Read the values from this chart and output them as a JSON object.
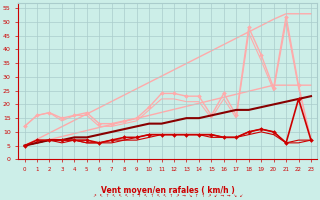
{
  "x": [
    0,
    1,
    2,
    3,
    4,
    5,
    6,
    7,
    8,
    9,
    10,
    11,
    12,
    13,
    14,
    15,
    16,
    17,
    18,
    19,
    20,
    21,
    22,
    23
  ],
  "background_color": "#cceee8",
  "grid_color": "#aacccc",
  "xlabel": "Vent moyen/en rafales ( km/h )",
  "ylabel_ticks": [
    0,
    5,
    10,
    15,
    20,
    25,
    30,
    35,
    40,
    45,
    50,
    55
  ],
  "lines": [
    {
      "y": [
        5.0,
        7.3,
        9.6,
        11.9,
        14.2,
        16.5,
        18.8,
        21.1,
        23.4,
        25.7,
        28.0,
        30.3,
        32.6,
        34.9,
        37.2,
        39.5,
        41.8,
        44.1,
        46.4,
        48.7,
        51.0,
        53.0,
        53.0,
        53.0
      ],
      "color": "#ffaaaa",
      "lw": 1.0,
      "marker": null,
      "ms": 0,
      "zorder": 1
    },
    {
      "y": [
        5.0,
        6.1,
        7.2,
        8.3,
        9.4,
        10.5,
        11.6,
        12.7,
        13.8,
        14.9,
        16.0,
        17.1,
        18.2,
        19.3,
        20.4,
        21.5,
        22.6,
        23.7,
        24.8,
        25.9,
        27.0,
        27.0,
        27.0,
        27.0
      ],
      "color": "#ffaaaa",
      "lw": 1.0,
      "marker": null,
      "ms": 0,
      "zorder": 1
    },
    {
      "y": [
        12,
        16,
        17,
        15,
        16,
        17,
        13,
        13,
        14,
        15,
        19,
        24,
        24,
        23,
        23,
        16,
        24,
        16,
        48,
        38,
        26,
        52,
        27,
        7
      ],
      "color": "#ffaaaa",
      "lw": 1.0,
      "marker": "D",
      "ms": 2,
      "zorder": 2
    },
    {
      "y": [
        12,
        16,
        17,
        14,
        16,
        16,
        12,
        12,
        13,
        14,
        18,
        22,
        22,
        21,
        21,
        15,
        22,
        15,
        46,
        36,
        25,
        50,
        26,
        7
      ],
      "color": "#ffaaaa",
      "lw": 0.8,
      "marker": null,
      "ms": 0,
      "zorder": 1
    },
    {
      "y": [
        5,
        6,
        7,
        7,
        8,
        8,
        9,
        10,
        11,
        12,
        13,
        13,
        14,
        15,
        15,
        16,
        17,
        18,
        18,
        19,
        20,
        21,
        22,
        23
      ],
      "color": "#880000",
      "lw": 1.5,
      "marker": null,
      "ms": 0,
      "zorder": 4
    },
    {
      "y": [
        5,
        7,
        7,
        7,
        7,
        7,
        6,
        7,
        8,
        8,
        9,
        9,
        9,
        9,
        9,
        9,
        8,
        8,
        10,
        11,
        10,
        6,
        22,
        7
      ],
      "color": "#cc0000",
      "lw": 1.2,
      "marker": "D",
      "ms": 2,
      "zorder": 5
    },
    {
      "y": [
        5,
        6,
        7,
        6,
        7,
        6,
        6,
        6,
        7,
        7,
        8,
        9,
        9,
        9,
        9,
        8,
        8,
        8,
        9,
        10,
        9,
        6,
        6,
        7
      ],
      "color": "#cc0000",
      "lw": 0.8,
      "marker": null,
      "ms": 0,
      "zorder": 3
    },
    {
      "y": [
        5,
        6,
        7,
        7,
        7,
        6,
        6,
        7,
        7,
        8,
        9,
        9,
        9,
        9,
        9,
        9,
        8,
        8,
        10,
        11,
        10,
        6,
        7,
        7
      ],
      "color": "#cc0000",
      "lw": 0.8,
      "marker": null,
      "ms": 0,
      "zorder": 3
    }
  ],
  "wind_arrows": [
    "↗",
    "↖",
    "↑",
    "↖",
    "↖",
    "↖",
    "↑",
    "↑",
    "↖",
    "↑",
    "↖",
    "↖",
    "↑",
    "↗",
    "→",
    "↘",
    "↑",
    "↑",
    "↗",
    "↙",
    "→",
    "→",
    "↘",
    "↙"
  ],
  "xlim": [
    -0.5,
    23.5
  ],
  "ylim": [
    0,
    57
  ]
}
